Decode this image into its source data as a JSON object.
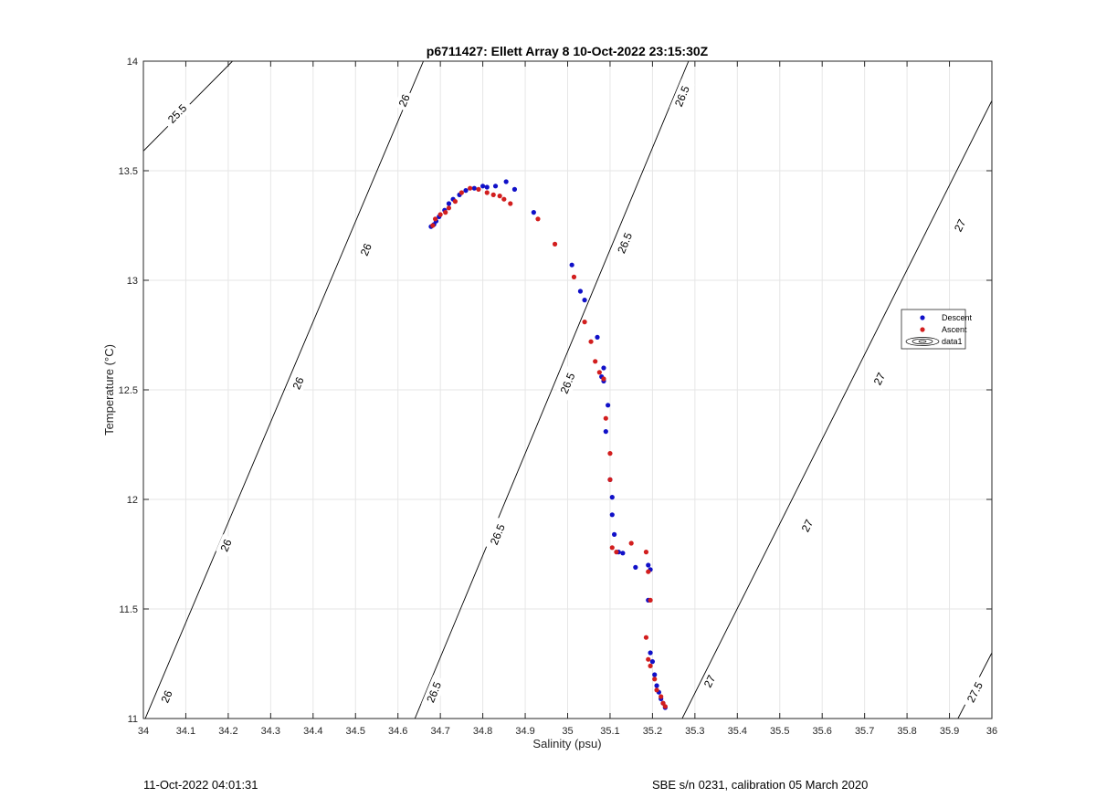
{
  "chart_data": {
    "type": "scatter",
    "title": "p6711427: Ellett Array 8 10-Oct-2022 23:15:30Z",
    "xlabel": "Salinity (psu)",
    "ylabel": "Temperature (°C)",
    "xlim": [
      34,
      36
    ],
    "ylim": [
      11,
      14
    ],
    "x_ticks": [
      "34",
      "34.1",
      "34.2",
      "34.3",
      "34.4",
      "34.5",
      "34.6",
      "34.7",
      "34.8",
      "34.9",
      "35",
      "35.1",
      "35.2",
      "35.3",
      "35.4",
      "35.5",
      "35.6",
      "35.7",
      "35.8",
      "35.9",
      "36"
    ],
    "y_ticks": [
      "11",
      "11.5",
      "12",
      "12.5",
      "13",
      "13.5",
      "14"
    ],
    "grid": true,
    "legend_position": "right",
    "legend": [
      "Descent",
      "Ascent",
      "data1"
    ],
    "series": [
      {
        "name": "Descent",
        "color": "#1010c8",
        "points": [
          [
            34.678,
            13.245
          ],
          [
            34.685,
            13.255
          ],
          [
            34.69,
            13.27
          ],
          [
            34.697,
            13.29
          ],
          [
            34.71,
            13.32
          ],
          [
            34.72,
            13.35
          ],
          [
            34.73,
            13.37
          ],
          [
            34.745,
            13.39
          ],
          [
            34.76,
            13.41
          ],
          [
            34.78,
            13.42
          ],
          [
            34.8,
            13.43
          ],
          [
            34.81,
            13.425
          ],
          [
            34.83,
            13.43
          ],
          [
            34.855,
            13.45
          ],
          [
            34.875,
            13.415
          ],
          [
            34.92,
            13.31
          ],
          [
            35.01,
            13.07
          ],
          [
            35.03,
            12.95
          ],
          [
            35.04,
            12.91
          ],
          [
            35.07,
            12.74
          ],
          [
            35.085,
            12.6
          ],
          [
            35.08,
            12.56
          ],
          [
            35.085,
            12.54
          ],
          [
            35.095,
            12.43
          ],
          [
            35.09,
            12.31
          ],
          [
            35.1,
            12.09
          ],
          [
            35.105,
            12.01
          ],
          [
            35.105,
            11.93
          ],
          [
            35.11,
            11.84
          ],
          [
            35.12,
            11.76
          ],
          [
            35.13,
            11.755
          ],
          [
            35.16,
            11.69
          ],
          [
            35.19,
            11.7
          ],
          [
            35.195,
            11.68
          ],
          [
            35.19,
            11.54
          ],
          [
            35.195,
            11.3
          ],
          [
            35.2,
            11.26
          ],
          [
            35.205,
            11.2
          ],
          [
            35.21,
            11.15
          ],
          [
            35.215,
            11.12
          ],
          [
            35.22,
            11.09
          ],
          [
            35.225,
            11.07
          ],
          [
            35.23,
            11.05
          ]
        ]
      },
      {
        "name": "Ascent",
        "color": "#d21e1e",
        "points": [
          [
            34.682,
            13.25
          ],
          [
            34.688,
            13.28
          ],
          [
            34.7,
            13.3
          ],
          [
            34.712,
            13.31
          ],
          [
            34.72,
            13.33
          ],
          [
            34.735,
            13.36
          ],
          [
            34.75,
            13.4
          ],
          [
            34.77,
            13.42
          ],
          [
            34.79,
            13.415
          ],
          [
            34.81,
            13.4
          ],
          [
            34.825,
            13.39
          ],
          [
            34.84,
            13.385
          ],
          [
            34.85,
            13.37
          ],
          [
            34.865,
            13.35
          ],
          [
            34.93,
            13.28
          ],
          [
            34.97,
            13.165
          ],
          [
            35.015,
            13.015
          ],
          [
            35.04,
            12.81
          ],
          [
            35.055,
            12.72
          ],
          [
            35.065,
            12.63
          ],
          [
            35.075,
            12.58
          ],
          [
            35.085,
            12.55
          ],
          [
            35.09,
            12.37
          ],
          [
            35.1,
            12.21
          ],
          [
            35.1,
            12.09
          ],
          [
            35.105,
            11.78
          ],
          [
            35.115,
            11.76
          ],
          [
            35.15,
            11.8
          ],
          [
            35.185,
            11.76
          ],
          [
            35.19,
            11.67
          ],
          [
            35.195,
            11.54
          ],
          [
            35.185,
            11.37
          ],
          [
            35.19,
            11.27
          ],
          [
            35.195,
            11.24
          ],
          [
            35.205,
            11.18
          ],
          [
            35.21,
            11.13
          ],
          [
            35.22,
            11.1
          ],
          [
            35.225,
            11.07
          ],
          [
            35.23,
            11.055
          ]
        ]
      }
    ],
    "contours": {
      "levels": [
        25.5,
        26,
        26.5,
        27,
        27.5
      ],
      "lines": [
        {
          "level": 25.5,
          "from": [
            34,
            13.59
          ],
          "to": [
            34.21,
            14
          ],
          "labels": [
            {
              "text": "25.5",
              "at": [
                34.08,
                13.76
              ]
            }
          ]
        },
        {
          "level": 26,
          "from": [
            34,
            10.98
          ],
          "to": [
            34.66,
            14
          ],
          "labels": [
            {
              "text": "26",
              "at": [
                34.055,
                11.1
              ]
            },
            {
              "text": "26",
              "at": [
                34.195,
                11.79
              ]
            },
            {
              "text": "26",
              "at": [
                34.365,
                12.53
              ]
            },
            {
              "text": "26",
              "at": [
                34.525,
                13.14
              ]
            },
            {
              "text": "26",
              "at": [
                34.615,
                13.82
              ]
            }
          ]
        },
        {
          "level": 26.5,
          "from": [
            34.64,
            11
          ],
          "to": [
            35.285,
            14
          ],
          "labels": [
            {
              "text": "26.5",
              "at": [
                34.685,
                11.12
              ]
            },
            {
              "text": "26.5",
              "at": [
                34.835,
                11.84
              ]
            },
            {
              "text": "26.5",
              "at": [
                35.0,
                12.53
              ]
            },
            {
              "text": "26.5",
              "at": [
                35.135,
                13.17
              ]
            },
            {
              "text": "26.5",
              "at": [
                35.27,
                13.84
              ]
            }
          ]
        },
        {
          "level": 27,
          "from": [
            35.27,
            11
          ],
          "to": [
            36,
            13.82
          ],
          "labels": [
            {
              "text": "27",
              "at": [
                35.335,
                11.17
              ]
            },
            {
              "text": "27",
              "at": [
                35.565,
                11.88
              ]
            },
            {
              "text": "27",
              "at": [
                35.735,
                12.55
              ]
            },
            {
              "text": "27",
              "at": [
                35.925,
                13.25
              ]
            }
          ]
        },
        {
          "level": 27.5,
          "from": [
            35.92,
            11
          ],
          "to": [
            36,
            11.3
          ],
          "labels": [
            {
              "text": "27.5",
              "at": [
                35.96,
                11.12
              ]
            }
          ]
        }
      ]
    }
  },
  "footer": {
    "timestamp": "11-Oct-2022 04:01:31",
    "calibration": "SBE s/n 0231, calibration 05 March 2020"
  }
}
